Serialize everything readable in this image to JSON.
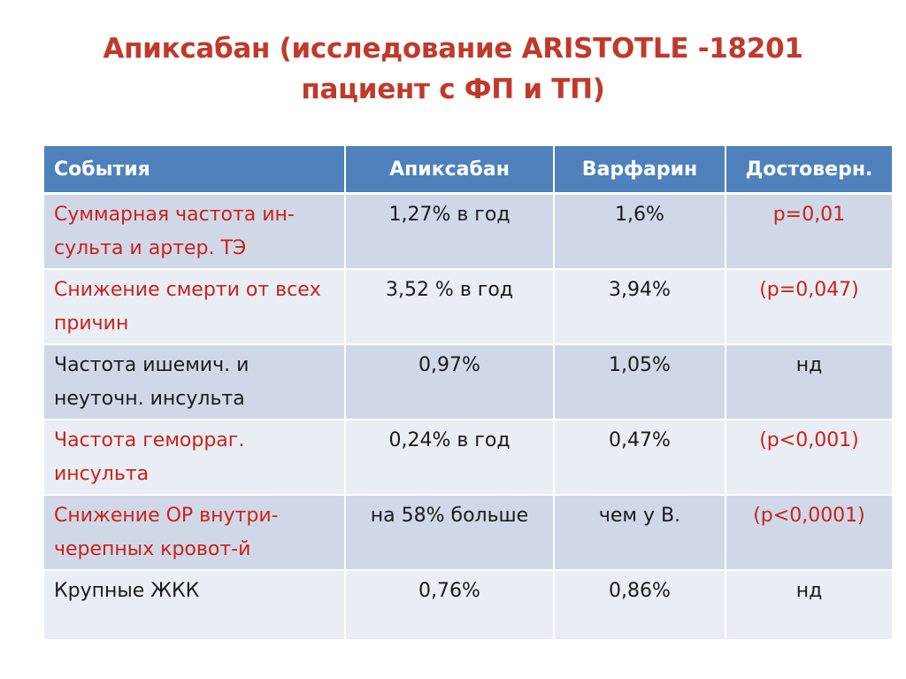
{
  "title": {
    "line1": "Апиксабан (исследование ARISTOTLE -18201",
    "line2": "пациент с ФП и ТП)"
  },
  "colors": {
    "title": "#c0392b",
    "header_bg": "#4f81bd",
    "row_odd": "#d0d8e8",
    "row_even": "#e9edf4",
    "highlight_text": "#c8231a"
  },
  "table": {
    "headers": [
      "События",
      "Апиксабан",
      "Варфарин",
      "Достоверн."
    ],
    "rows": [
      {
        "event": "Суммарная частота ин-сульта и артер. ТЭ",
        "apixaban": "1,27% в год",
        "warfarin": "1,6%",
        "significance": "р=0,01",
        "highlight": true
      },
      {
        "event": "Снижение смерти от всех причин",
        "apixaban": "3,52 % в год",
        "warfarin": "3,94%",
        "significance": "(р=0,047)",
        "highlight": true
      },
      {
        "event": "Частота ишемич. и неуточн. инсульта",
        "apixaban": "0,97%",
        "warfarin": "1,05%",
        "significance": "нд",
        "highlight": false
      },
      {
        "event": "Частота геморраг. инсульта",
        "apixaban": "0,24%  в год",
        "warfarin": "0,47%",
        "significance": "(р<0,001)",
        "highlight": true
      },
      {
        "event": "Снижение ОР внутри-черепных кровот-й",
        "apixaban": "на 58% больше",
        "warfarin": "чем у В.",
        "significance": "(р<0,0001)",
        "highlight": true
      },
      {
        "event": "Крупные ЖКК",
        "apixaban": "0,76%",
        "warfarin": "0,86%",
        "significance": "нд",
        "highlight": false
      }
    ]
  }
}
